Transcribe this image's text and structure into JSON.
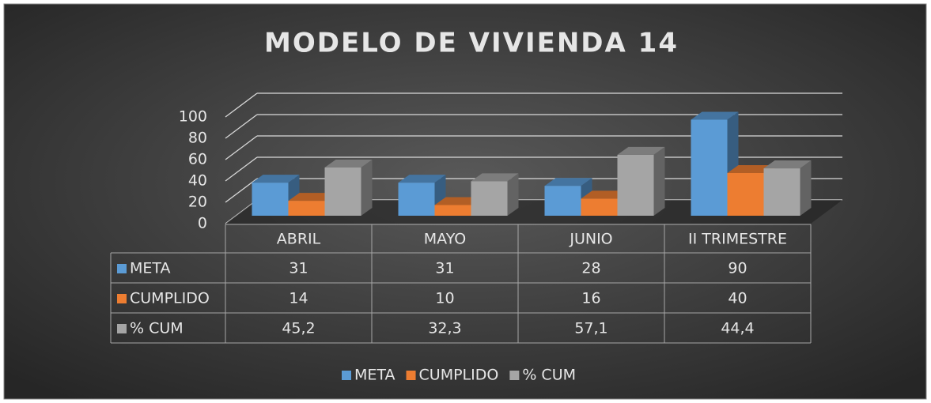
{
  "chart_data": {
    "type": "bar",
    "title": "MODELO DE VIVIENDA 14",
    "categories": [
      "ABRIL",
      "MAYO",
      "JUNIO",
      "II TRIMESTRE"
    ],
    "series": [
      {
        "name": "META",
        "color": "#5b9bd5",
        "values": [
          31,
          31,
          28,
          90
        ]
      },
      {
        "name": "CUMPLIDO",
        "color": "#ed7d31",
        "values": [
          14,
          10,
          16,
          40
        ]
      },
      {
        "name": "% CUM",
        "color": "#a5a5a5",
        "values": [
          45.2,
          32.3,
          57.1,
          44.4
        ],
        "value_labels": [
          "45,2",
          "32,3",
          "57,1",
          "44,4"
        ]
      }
    ],
    "ylim": [
      0,
      100
    ],
    "yticks": [
      0,
      20,
      40,
      60,
      80,
      100
    ],
    "grid": true,
    "legend": "bottom",
    "data_table": true
  }
}
